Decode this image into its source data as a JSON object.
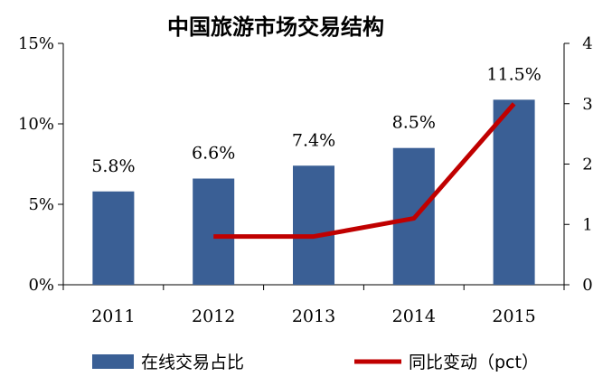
{
  "chart_data": {
    "type": "bar",
    "title": "中国旅游市场交易结构",
    "categories": [
      "2011",
      "2012",
      "2013",
      "2014",
      "2015"
    ],
    "series": [
      {
        "name": "在线交易占比",
        "kind": "bar",
        "axis": "left",
        "color": "#3A5F95",
        "values": [
          5.8,
          6.6,
          7.4,
          8.5,
          11.5
        ],
        "labels": [
          "5.8%",
          "6.6%",
          "7.4%",
          "8.5%",
          "11.5%"
        ]
      },
      {
        "name": "同比变动（pct）",
        "kind": "line",
        "axis": "right",
        "color": "#C00000",
        "values": [
          null,
          0.8,
          0.8,
          1.1,
          3.0
        ]
      }
    ],
    "y_left": {
      "lim": [
        0,
        15
      ],
      "ticks": [
        0,
        5,
        10,
        15
      ],
      "tick_labels": [
        "0%",
        "5%",
        "10%",
        "15%"
      ]
    },
    "y_right": {
      "lim": [
        0,
        4
      ],
      "ticks": [
        0,
        1,
        2,
        3,
        4
      ],
      "tick_labels": [
        "0",
        "1",
        "2",
        "3",
        "4"
      ]
    },
    "grid": false,
    "legend": "bottom"
  }
}
